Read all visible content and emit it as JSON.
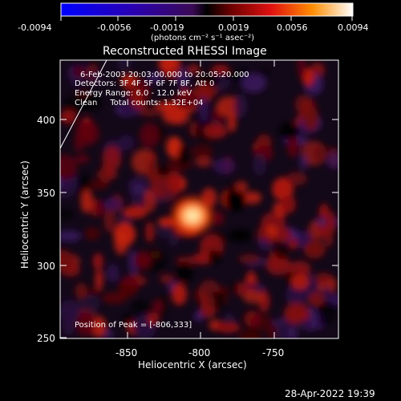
{
  "colorbar": {
    "ticks": [
      "-0.0094",
      "-0.0056",
      "-0.0019",
      "0.0019",
      "0.0056",
      "0.0094"
    ],
    "units": "(photons cm⁻² s⁻¹ asec⁻²)"
  },
  "title": "Reconstructed RHESSI Image",
  "info": {
    "time": "6-Feb-2003 20:03:00.000 to 20:05:20.000",
    "detectors": "Detectors: 3F 4F 5F 6F 7F 8F, Att 0",
    "energy": "Energy Range: 6.0 - 12.0 keV",
    "clean": "Clean     Total counts: 1.32E+04"
  },
  "peak": "Position of Peak = [-806,333]",
  "axes": {
    "xlabel": "Heliocentric X (arcsec)",
    "ylabel": "Heliocentric Y (arcsec)",
    "xticks": [
      "-850",
      "-800",
      "-750"
    ],
    "yticks": [
      "400",
      "350",
      "300",
      "250"
    ]
  },
  "footer": "28-Apr-2022 19:39",
  "colors": {
    "background": "#000000",
    "text": "#ffffff"
  }
}
